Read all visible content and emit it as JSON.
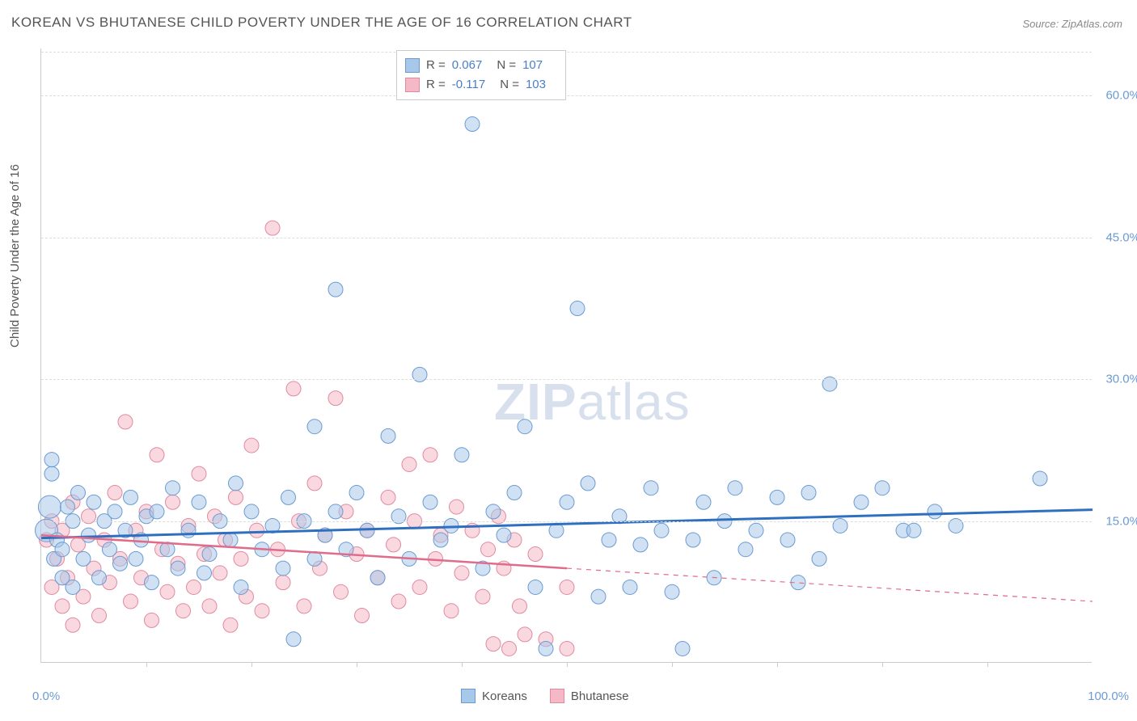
{
  "title": "KOREAN VS BHUTANESE CHILD POVERTY UNDER THE AGE OF 16 CORRELATION CHART",
  "source": "Source: ZipAtlas.com",
  "watermark": {
    "bold": "ZIP",
    "light": "atlas"
  },
  "yaxis_label": "Child Poverty Under the Age of 16",
  "series": {
    "korean": {
      "label": "Koreans",
      "color_fill": "#a8c8ea",
      "color_stroke": "#6b9bd1",
      "line_color": "#2e6fc0",
      "R": "0.067",
      "N": "107",
      "trend": {
        "x1": 0,
        "y1": 13.2,
        "x2": 100,
        "y2": 16.2
      }
    },
    "bhutanese": {
      "label": "Bhutanese",
      "color_fill": "#f5b8c6",
      "color_stroke": "#e08aa0",
      "line_color": "#e06b8a",
      "R": "-0.117",
      "N": "103",
      "trend_solid": {
        "x1": 0,
        "y1": 13.5,
        "x2": 50,
        "y2": 10.0
      },
      "trend_dashed": {
        "x1": 50,
        "y1": 10.0,
        "x2": 100,
        "y2": 6.5
      }
    }
  },
  "legend_stats_labels": {
    "R": "R =",
    "N": "N ="
  },
  "axes": {
    "xlim": [
      0,
      100
    ],
    "ylim": [
      0,
      65
    ],
    "yticks": [
      {
        "value": 15.0,
        "label": "15.0%"
      },
      {
        "value": 30.0,
        "label": "30.0%"
      },
      {
        "value": 45.0,
        "label": "45.0%"
      },
      {
        "value": 60.0,
        "label": "60.0%"
      }
    ],
    "xticks_step": 10,
    "xlabel_min": "0.0%",
    "xlabel_max": "100.0%"
  },
  "marker_radius": 9,
  "marker_opacity": 0.55,
  "points_korean": [
    [
      0.5,
      14
    ],
    [
      0.8,
      16.5
    ],
    [
      1,
      20
    ],
    [
      1,
      21.5
    ],
    [
      1.2,
      11
    ],
    [
      1.5,
      13
    ],
    [
      2,
      9
    ],
    [
      2,
      12
    ],
    [
      2.5,
      16.5
    ],
    [
      3,
      8
    ],
    [
      3,
      15
    ],
    [
      3.5,
      18
    ],
    [
      4,
      11
    ],
    [
      4.5,
      13.5
    ],
    [
      5,
      17
    ],
    [
      5.5,
      9
    ],
    [
      6,
      15
    ],
    [
      6.5,
      12
    ],
    [
      7,
      16
    ],
    [
      7.5,
      10.5
    ],
    [
      8,
      14
    ],
    [
      8.5,
      17.5
    ],
    [
      9,
      11
    ],
    [
      9.5,
      13
    ],
    [
      10,
      15.5
    ],
    [
      10.5,
      8.5
    ],
    [
      11,
      16
    ],
    [
      12,
      12
    ],
    [
      12.5,
      18.5
    ],
    [
      13,
      10
    ],
    [
      14,
      14
    ],
    [
      15,
      17
    ],
    [
      15.5,
      9.5
    ],
    [
      16,
      11.5
    ],
    [
      17,
      15
    ],
    [
      18,
      13
    ],
    [
      18.5,
      19
    ],
    [
      19,
      8
    ],
    [
      20,
      16
    ],
    [
      21,
      12
    ],
    [
      22,
      14.5
    ],
    [
      23,
      10
    ],
    [
      23.5,
      17.5
    ],
    [
      24,
      2.5
    ],
    [
      25,
      15
    ],
    [
      26,
      25
    ],
    [
      26,
      11
    ],
    [
      27,
      13.5
    ],
    [
      28,
      39.5
    ],
    [
      28,
      16
    ],
    [
      29,
      12
    ],
    [
      30,
      18
    ],
    [
      31,
      14
    ],
    [
      32,
      9
    ],
    [
      33,
      24
    ],
    [
      34,
      15.5
    ],
    [
      35,
      11
    ],
    [
      36,
      30.5
    ],
    [
      37,
      17
    ],
    [
      38,
      13
    ],
    [
      39,
      14.5
    ],
    [
      40,
      22
    ],
    [
      41,
      57
    ],
    [
      42,
      10
    ],
    [
      43,
      16
    ],
    [
      44,
      13.5
    ],
    [
      45,
      18
    ],
    [
      46,
      25
    ],
    [
      47,
      8
    ],
    [
      48,
      1.5
    ],
    [
      49,
      14
    ],
    [
      50,
      17
    ],
    [
      51,
      37.5
    ],
    [
      52,
      19
    ],
    [
      53,
      7
    ],
    [
      54,
      13
    ],
    [
      55,
      15.5
    ],
    [
      56,
      8
    ],
    [
      57,
      12.5
    ],
    [
      58,
      18.5
    ],
    [
      59,
      14
    ],
    [
      60,
      7.5
    ],
    [
      61,
      1.5
    ],
    [
      62,
      13
    ],
    [
      63,
      17
    ],
    [
      64,
      9
    ],
    [
      65,
      15
    ],
    [
      66,
      18.5
    ],
    [
      67,
      12
    ],
    [
      68,
      14
    ],
    [
      70,
      17.5
    ],
    [
      71,
      13
    ],
    [
      72,
      8.5
    ],
    [
      73,
      18
    ],
    [
      74,
      11
    ],
    [
      75,
      29.5
    ],
    [
      76,
      14.5
    ],
    [
      78,
      17
    ],
    [
      80,
      18.5
    ],
    [
      82,
      14
    ],
    [
      83,
      14
    ],
    [
      85,
      16
    ],
    [
      87,
      14.5
    ],
    [
      95,
      19.5
    ]
  ],
  "points_bhutanese": [
    [
      0.5,
      13
    ],
    [
      1,
      15
    ],
    [
      1,
      8
    ],
    [
      1.5,
      11
    ],
    [
      2,
      6
    ],
    [
      2,
      14
    ],
    [
      2.5,
      9
    ],
    [
      3,
      17
    ],
    [
      3,
      4
    ],
    [
      3.5,
      12.5
    ],
    [
      4,
      7
    ],
    [
      4.5,
      15.5
    ],
    [
      5,
      10
    ],
    [
      5.5,
      5
    ],
    [
      6,
      13
    ],
    [
      6.5,
      8.5
    ],
    [
      7,
      18
    ],
    [
      7.5,
      11
    ],
    [
      8,
      25.5
    ],
    [
      8.5,
      6.5
    ],
    [
      9,
      14
    ],
    [
      9.5,
      9
    ],
    [
      10,
      16
    ],
    [
      10.5,
      4.5
    ],
    [
      11,
      22
    ],
    [
      11.5,
      12
    ],
    [
      12,
      7.5
    ],
    [
      12.5,
      17
    ],
    [
      13,
      10.5
    ],
    [
      13.5,
      5.5
    ],
    [
      14,
      14.5
    ],
    [
      14.5,
      8
    ],
    [
      15,
      20
    ],
    [
      15.5,
      11.5
    ],
    [
      16,
      6
    ],
    [
      16.5,
      15.5
    ],
    [
      17,
      9.5
    ],
    [
      17.5,
      13
    ],
    [
      18,
      4
    ],
    [
      18.5,
      17.5
    ],
    [
      19,
      11
    ],
    [
      19.5,
      7
    ],
    [
      20,
      23
    ],
    [
      20.5,
      14
    ],
    [
      21,
      5.5
    ],
    [
      22,
      46
    ],
    [
      22.5,
      12
    ],
    [
      23,
      8.5
    ],
    [
      24,
      29
    ],
    [
      24.5,
      15
    ],
    [
      25,
      6
    ],
    [
      26,
      19
    ],
    [
      26.5,
      10
    ],
    [
      27,
      13.5
    ],
    [
      28,
      28
    ],
    [
      28.5,
      7.5
    ],
    [
      29,
      16
    ],
    [
      30,
      11.5
    ],
    [
      30.5,
      5
    ],
    [
      31,
      14
    ],
    [
      32,
      9
    ],
    [
      33,
      17.5
    ],
    [
      33.5,
      12.5
    ],
    [
      34,
      6.5
    ],
    [
      35,
      21
    ],
    [
      35.5,
      15
    ],
    [
      36,
      8
    ],
    [
      37,
      22
    ],
    [
      37.5,
      11
    ],
    [
      38,
      13.5
    ],
    [
      39,
      5.5
    ],
    [
      39.5,
      16.5
    ],
    [
      40,
      9.5
    ],
    [
      41,
      14
    ],
    [
      42,
      7
    ],
    [
      42.5,
      12
    ],
    [
      43,
      2
    ],
    [
      43.5,
      15.5
    ],
    [
      44,
      10
    ],
    [
      44.5,
      1.5
    ],
    [
      45,
      13
    ],
    [
      45.5,
      6
    ],
    [
      46,
      3
    ],
    [
      47,
      11.5
    ],
    [
      48,
      2.5
    ],
    [
      50,
      8
    ],
    [
      50,
      1.5
    ]
  ]
}
